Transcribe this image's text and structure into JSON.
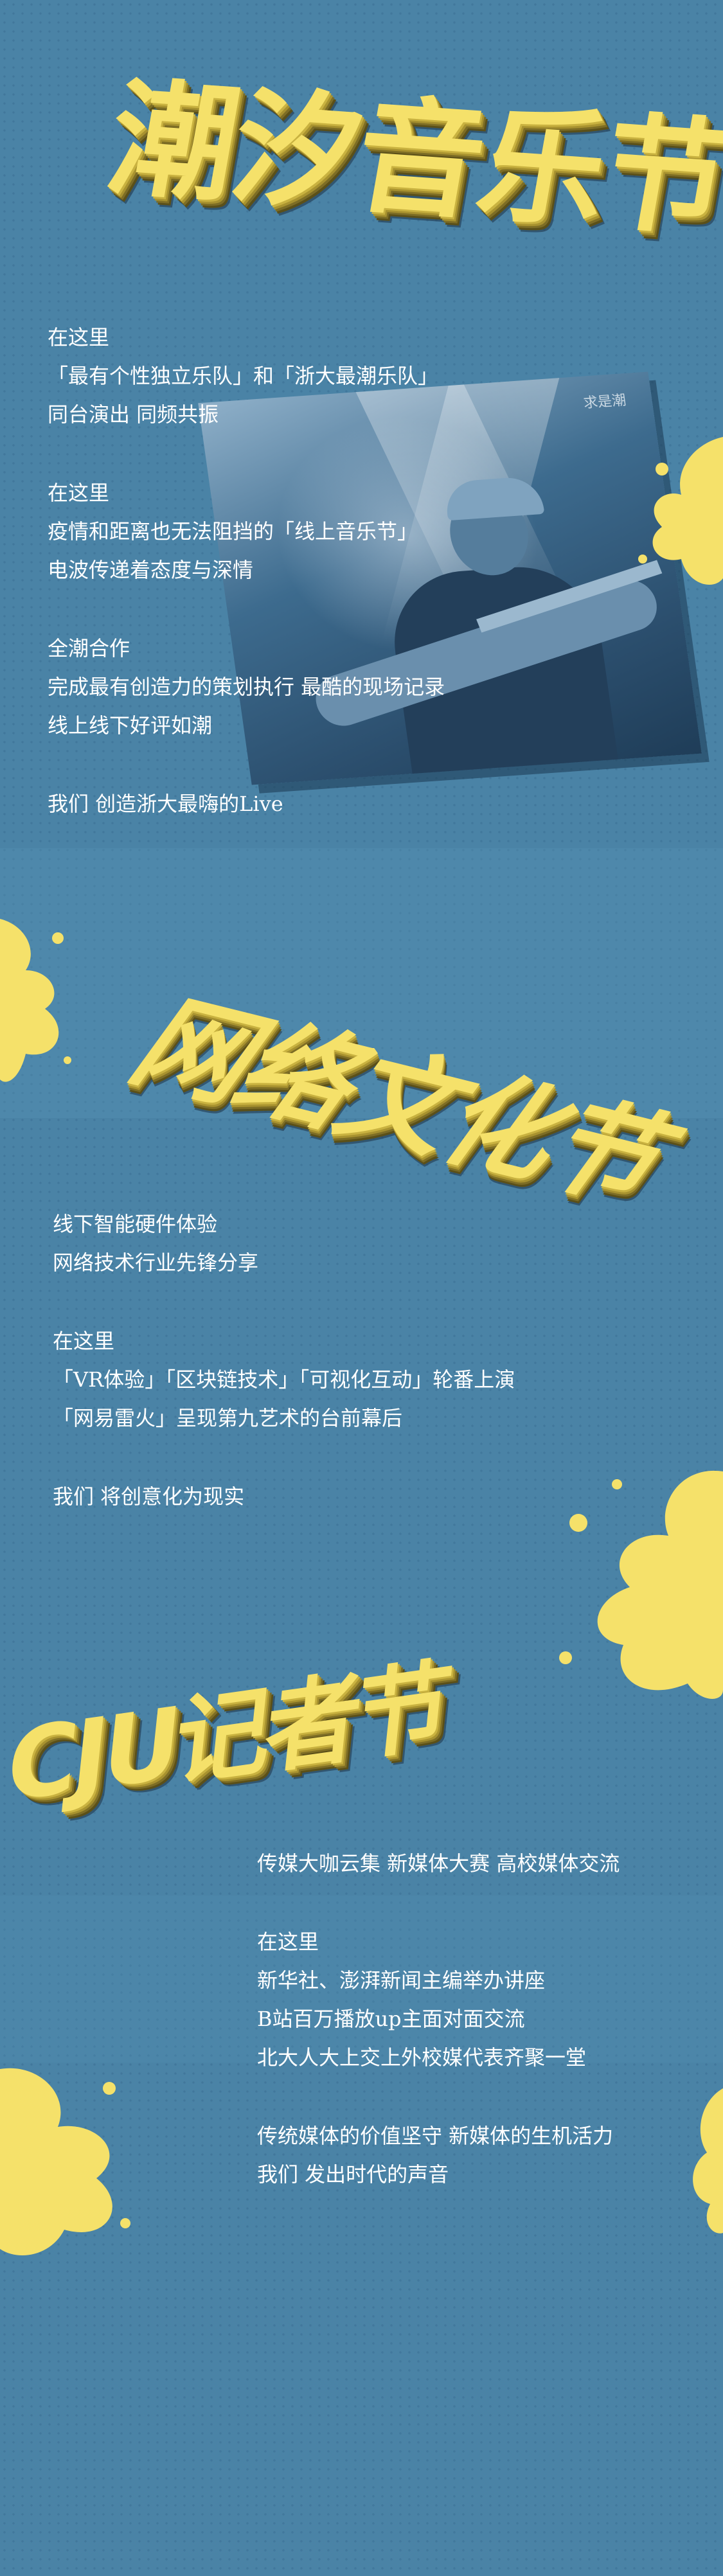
{
  "sections": [
    {
      "title": "潮汐音乐节",
      "lines": [
        "在这里",
        "「最有个性独立乐队」和「浙大最潮乐队」",
        "同台演出 同频共振",
        "",
        "在这里",
        "疫情和距离也无法阻挡的「线上音乐节」",
        "电波传递着态度与深情",
        "",
        "全潮合作",
        "完成最有创造力的策划执行 最酷的现场记录",
        "线上线下好评如潮",
        "",
        "我们 创造浙大最嗨的Live"
      ]
    },
    {
      "title": "网络文化节",
      "lines": [
        "线下智能硬件体验",
        "网络技术行业先锋分享",
        "",
        "在这里",
        "「VR体验」「区块链技术」「可视化互动」轮番上演",
        "「网易雷火」呈现第九艺术的台前幕后",
        "",
        "我们 将创意化为现实"
      ]
    },
    {
      "title": "CJU记者节",
      "lines": [
        "传媒大咖云集 新媒体大赛 高校媒体交流",
        "",
        "在这里",
        "新华社、澎湃新闻主编举办讲座",
        "B站百万播放up主面对面交流",
        "北大人大上交上外校媒代表齐聚一堂",
        "",
        "传统媒体的价值坚守 新媒体的生机活力",
        "我们 发出时代的声音"
      ]
    }
  ],
  "photo": {
    "logo_text": "求是潮"
  },
  "colors": {
    "background": "#4a83a6",
    "accent": "#f5e16a",
    "text": "#ffffff"
  }
}
